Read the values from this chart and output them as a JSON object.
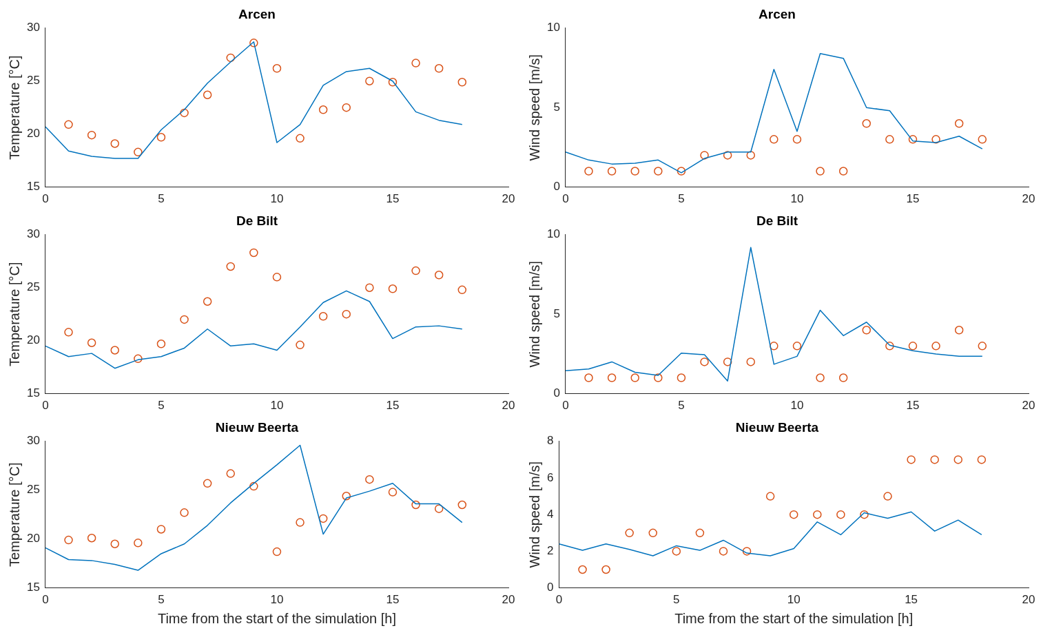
{
  "chart_data": [
    {
      "type": "line",
      "title": "Arcen",
      "ylabel": "Temperature [°C]",
      "xlim": [
        0,
        20
      ],
      "xticks": [
        0,
        5,
        10,
        15,
        20
      ],
      "ylim": [
        15,
        30
      ],
      "yticks": [
        15,
        20,
        25,
        30
      ],
      "grid": false,
      "legend": false,
      "series": [
        {
          "color": "#0072bd",
          "marker": "none",
          "x": [
            0,
            1,
            2,
            3,
            4,
            5,
            6,
            7,
            8,
            9,
            10,
            11,
            12,
            13,
            14,
            15,
            16,
            17,
            18
          ],
          "values": [
            20.7,
            18.4,
            17.9,
            17.7,
            17.7,
            20.4,
            22.3,
            24.8,
            26.8,
            28.7,
            19.2,
            20.9,
            24.6,
            25.9,
            26.2,
            25.0,
            22.1,
            21.3,
            20.9
          ]
        },
        {
          "type": "scatter",
          "color": "#d95319",
          "marker": "circle",
          "x": [
            1,
            2,
            3,
            4,
            5,
            6,
            7,
            8,
            9,
            10,
            11,
            12,
            13,
            14,
            15,
            16,
            17,
            18
          ],
          "values": [
            20.9,
            19.9,
            19.1,
            18.3,
            19.7,
            22.0,
            23.7,
            27.2,
            28.6,
            26.2,
            19.6,
            22.3,
            22.5,
            25.0,
            24.9,
            26.7,
            26.2,
            24.9
          ]
        }
      ]
    },
    {
      "type": "line",
      "title": "Arcen",
      "ylabel": "Wind speed [m/s]",
      "xlim": [
        0,
        20
      ],
      "xticks": [
        0,
        5,
        10,
        15,
        20
      ],
      "ylim": [
        0,
        10
      ],
      "yticks": [
        0,
        5,
        10
      ],
      "grid": false,
      "legend": false,
      "series": [
        {
          "color": "#0072bd",
          "marker": "none",
          "x": [
            0,
            1,
            2,
            3,
            4,
            5,
            6,
            7,
            8,
            9,
            10,
            11,
            12,
            13,
            14,
            15,
            16,
            17,
            18
          ],
          "values": [
            2.2,
            1.7,
            1.45,
            1.5,
            1.7,
            0.9,
            1.8,
            2.2,
            2.2,
            7.4,
            3.5,
            8.4,
            8.1,
            5.0,
            4.8,
            2.9,
            2.8,
            3.2,
            2.4
          ]
        },
        {
          "type": "scatter",
          "color": "#d95319",
          "marker": "circle",
          "x": [
            1,
            2,
            3,
            4,
            5,
            6,
            7,
            8,
            9,
            10,
            11,
            12,
            13,
            14,
            15,
            16,
            17,
            18
          ],
          "values": [
            1,
            1,
            1,
            1,
            1,
            2,
            2,
            2,
            3,
            3,
            1,
            1,
            4,
            3,
            3,
            3,
            4,
            3
          ]
        }
      ]
    },
    {
      "type": "line",
      "title": "De Bilt",
      "ylabel": "Temperature [°C]",
      "xlim": [
        0,
        20
      ],
      "xticks": [
        0,
        5,
        10,
        15,
        20
      ],
      "ylim": [
        15,
        30
      ],
      "yticks": [
        15,
        20,
        25,
        30
      ],
      "grid": false,
      "legend": false,
      "series": [
        {
          "color": "#0072bd",
          "marker": "none",
          "x": [
            0,
            1,
            2,
            3,
            4,
            5,
            6,
            7,
            8,
            9,
            10,
            11,
            12,
            13,
            14,
            15,
            16,
            17,
            18
          ],
          "values": [
            19.5,
            18.5,
            18.8,
            17.4,
            18.2,
            18.5,
            19.3,
            21.1,
            19.5,
            19.7,
            19.1,
            21.3,
            23.6,
            24.7,
            23.7,
            20.2,
            21.3,
            21.4,
            21.1
          ]
        },
        {
          "type": "scatter",
          "color": "#d95319",
          "marker": "circle",
          "x": [
            1,
            2,
            3,
            4,
            5,
            6,
            7,
            8,
            9,
            10,
            11,
            12,
            13,
            14,
            15,
            16,
            17,
            18
          ],
          "values": [
            20.8,
            19.8,
            19.1,
            18.3,
            19.7,
            22.0,
            23.7,
            27.0,
            28.3,
            26.0,
            19.6,
            22.3,
            22.5,
            25.0,
            24.9,
            26.6,
            26.2,
            24.8
          ]
        }
      ]
    },
    {
      "type": "line",
      "title": "De Bilt",
      "ylabel": "Wind speed [m/s]",
      "xlim": [
        0,
        20
      ],
      "xticks": [
        0,
        5,
        10,
        15,
        20
      ],
      "ylim": [
        0,
        10
      ],
      "yticks": [
        0,
        5,
        10
      ],
      "grid": false,
      "legend": false,
      "series": [
        {
          "color": "#0072bd",
          "marker": "none",
          "x": [
            0,
            1,
            2,
            3,
            4,
            5,
            6,
            7,
            8,
            9,
            10,
            11,
            12,
            13,
            14,
            15,
            16,
            17,
            18
          ],
          "values": [
            1.45,
            1.55,
            2.0,
            1.35,
            1.15,
            2.55,
            2.45,
            0.8,
            9.2,
            1.85,
            2.35,
            5.25,
            3.65,
            4.5,
            3.05,
            2.7,
            2.5,
            2.35,
            2.35
          ]
        },
        {
          "type": "scatter",
          "color": "#d95319",
          "marker": "circle",
          "x": [
            1,
            2,
            3,
            4,
            5,
            6,
            7,
            8,
            9,
            10,
            11,
            12,
            13,
            14,
            15,
            16,
            17,
            18
          ],
          "values": [
            1,
            1,
            1,
            1,
            1,
            2,
            2,
            2,
            3,
            3,
            1,
            1,
            4,
            3,
            3,
            3,
            4,
            3
          ]
        }
      ]
    },
    {
      "type": "line",
      "title": "Nieuw Beerta",
      "xlabel": "Time from the start of the simulation [h]",
      "ylabel": "Temperature [°C]",
      "xlim": [
        0,
        20
      ],
      "xticks": [
        0,
        5,
        10,
        15,
        20
      ],
      "ylim": [
        15,
        30
      ],
      "yticks": [
        15,
        20,
        25,
        30
      ],
      "grid": false,
      "legend": false,
      "series": [
        {
          "color": "#0072bd",
          "marker": "none",
          "x": [
            0,
            1,
            2,
            3,
            4,
            5,
            6,
            7,
            8,
            9,
            10,
            11,
            12,
            13,
            14,
            15,
            16,
            17,
            18
          ],
          "values": [
            19.1,
            17.9,
            17.8,
            17.4,
            16.8,
            18.5,
            19.5,
            21.4,
            23.7,
            25.7,
            27.6,
            29.6,
            20.5,
            24.2,
            24.9,
            25.7,
            23.6,
            23.6,
            21.7
          ]
        },
        {
          "type": "scatter",
          "color": "#d95319",
          "marker": "circle",
          "x": [
            1,
            2,
            3,
            4,
            5,
            6,
            7,
            8,
            9,
            10,
            11,
            12,
            13,
            14,
            15,
            16,
            17,
            18
          ],
          "values": [
            19.9,
            20.1,
            19.5,
            19.6,
            21.0,
            22.7,
            25.7,
            26.7,
            25.4,
            18.7,
            21.7,
            22.1,
            24.4,
            26.1,
            24.8,
            23.5,
            23.1,
            23.5
          ]
        }
      ]
    },
    {
      "type": "line",
      "title": "Nieuw Beerta",
      "xlabel": "Time from the start of the simulation [h]",
      "ylabel": "Wind speed [m/s]",
      "xlim": [
        0,
        20
      ],
      "xticks": [
        0,
        5,
        10,
        15,
        20
      ],
      "ylim": [
        0,
        8
      ],
      "yticks": [
        0,
        2,
        4,
        6,
        8
      ],
      "grid": false,
      "legend": false,
      "series": [
        {
          "color": "#0072bd",
          "marker": "none",
          "x": [
            0,
            1,
            2,
            3,
            4,
            5,
            6,
            7,
            8,
            9,
            10,
            11,
            12,
            13,
            14,
            15,
            16,
            17,
            18
          ],
          "values": [
            2.4,
            2.05,
            2.4,
            2.1,
            1.75,
            2.3,
            2.05,
            2.6,
            1.9,
            1.75,
            2.15,
            3.6,
            2.9,
            4.1,
            3.8,
            4.15,
            3.1,
            3.7,
            2.9
          ]
        },
        {
          "type": "scatter",
          "color": "#d95319",
          "marker": "circle",
          "x": [
            1,
            2,
            3,
            4,
            5,
            6,
            7,
            8,
            9,
            10,
            11,
            12,
            13,
            14,
            15,
            16,
            17,
            18
          ],
          "values": [
            1,
            1,
            3,
            3,
            2,
            3,
            2,
            2,
            5,
            4,
            4,
            4,
            4,
            5,
            7,
            7,
            7,
            7
          ]
        }
      ]
    }
  ]
}
